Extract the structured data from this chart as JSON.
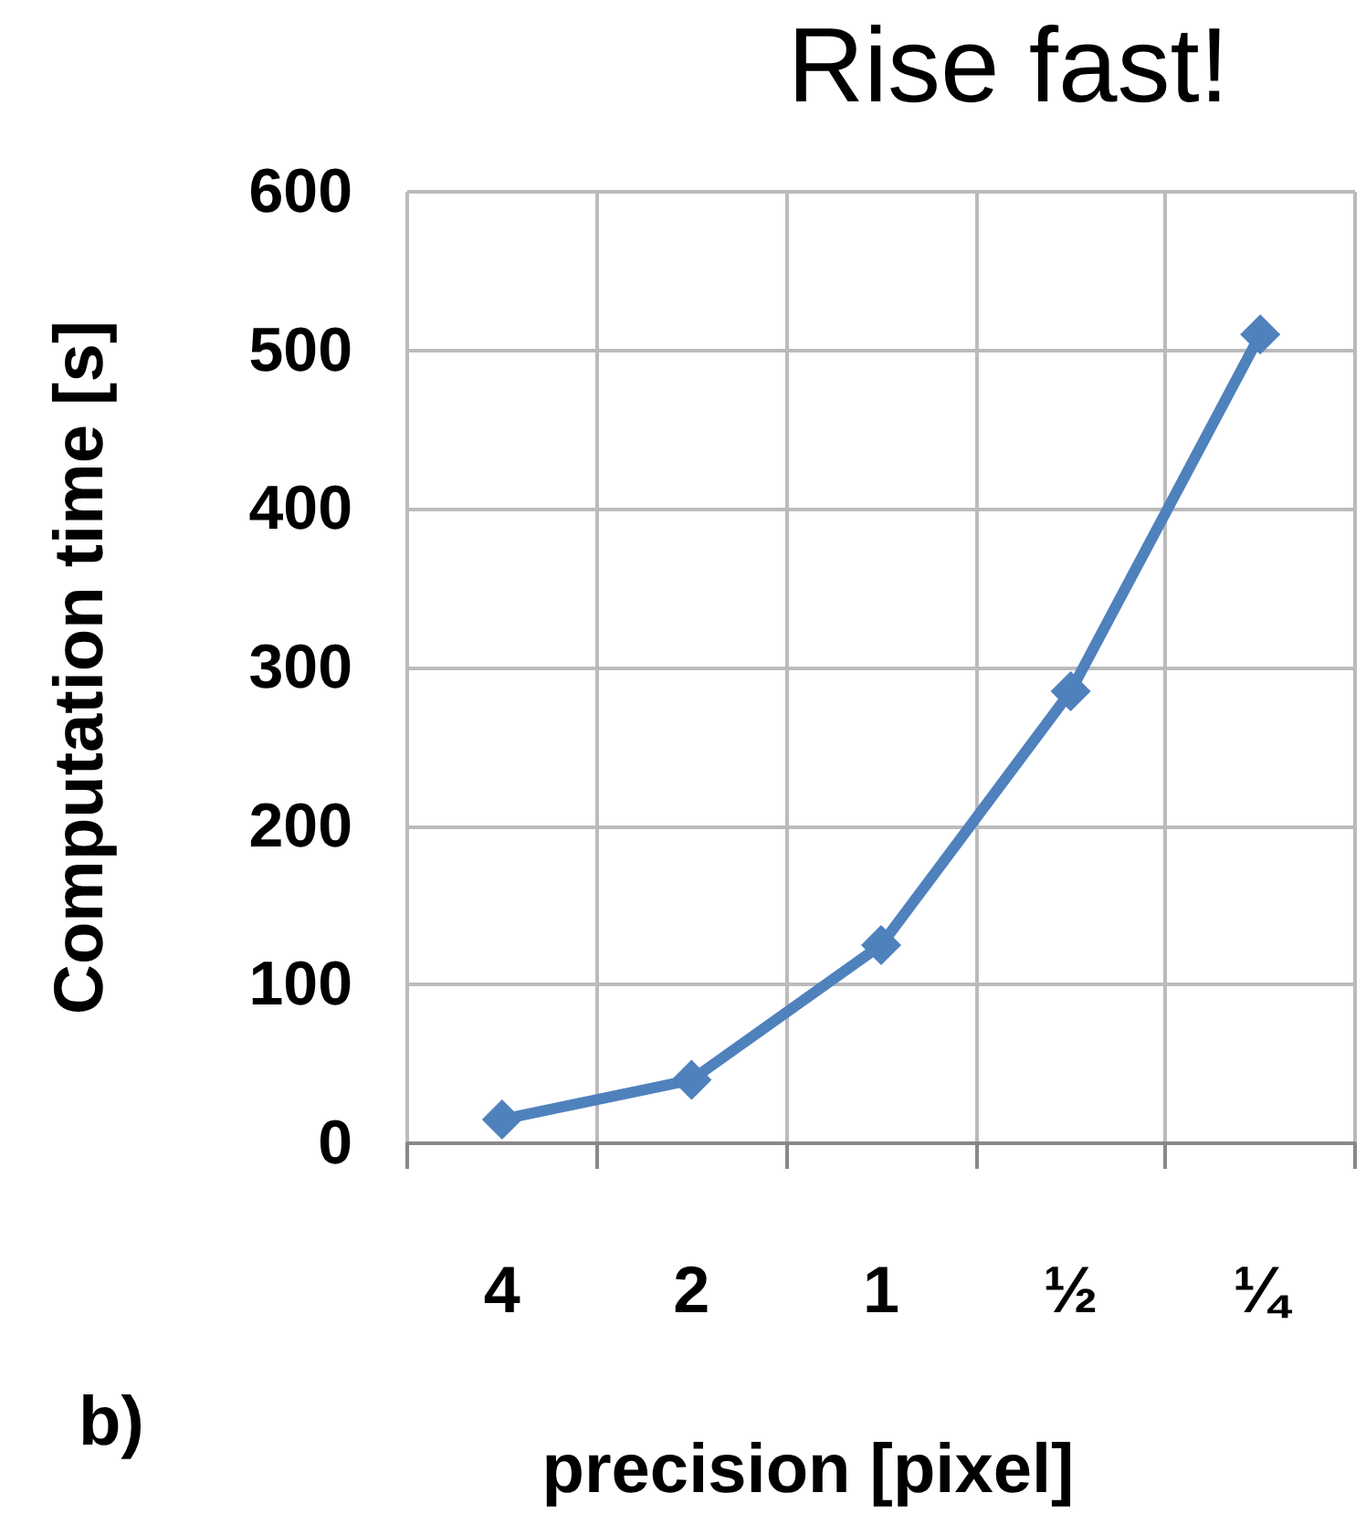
{
  "chart_data": {
    "type": "line",
    "title": "Rise fast!",
    "xlabel": "precision [pixel]",
    "ylabel": "Computation time [s]",
    "categories": [
      "4",
      "2",
      "1",
      "½",
      "¼"
    ],
    "series": [
      {
        "color": "#4f81bd",
        "values": [
          15,
          40,
          125,
          285,
          510
        ]
      }
    ],
    "ylim": [
      0,
      600
    ],
    "yticks": [
      0,
      100,
      200,
      300,
      400,
      500,
      600
    ],
    "grid": true,
    "marker": "diamond",
    "line_style": "solid",
    "annotations": [
      "b)"
    ]
  }
}
